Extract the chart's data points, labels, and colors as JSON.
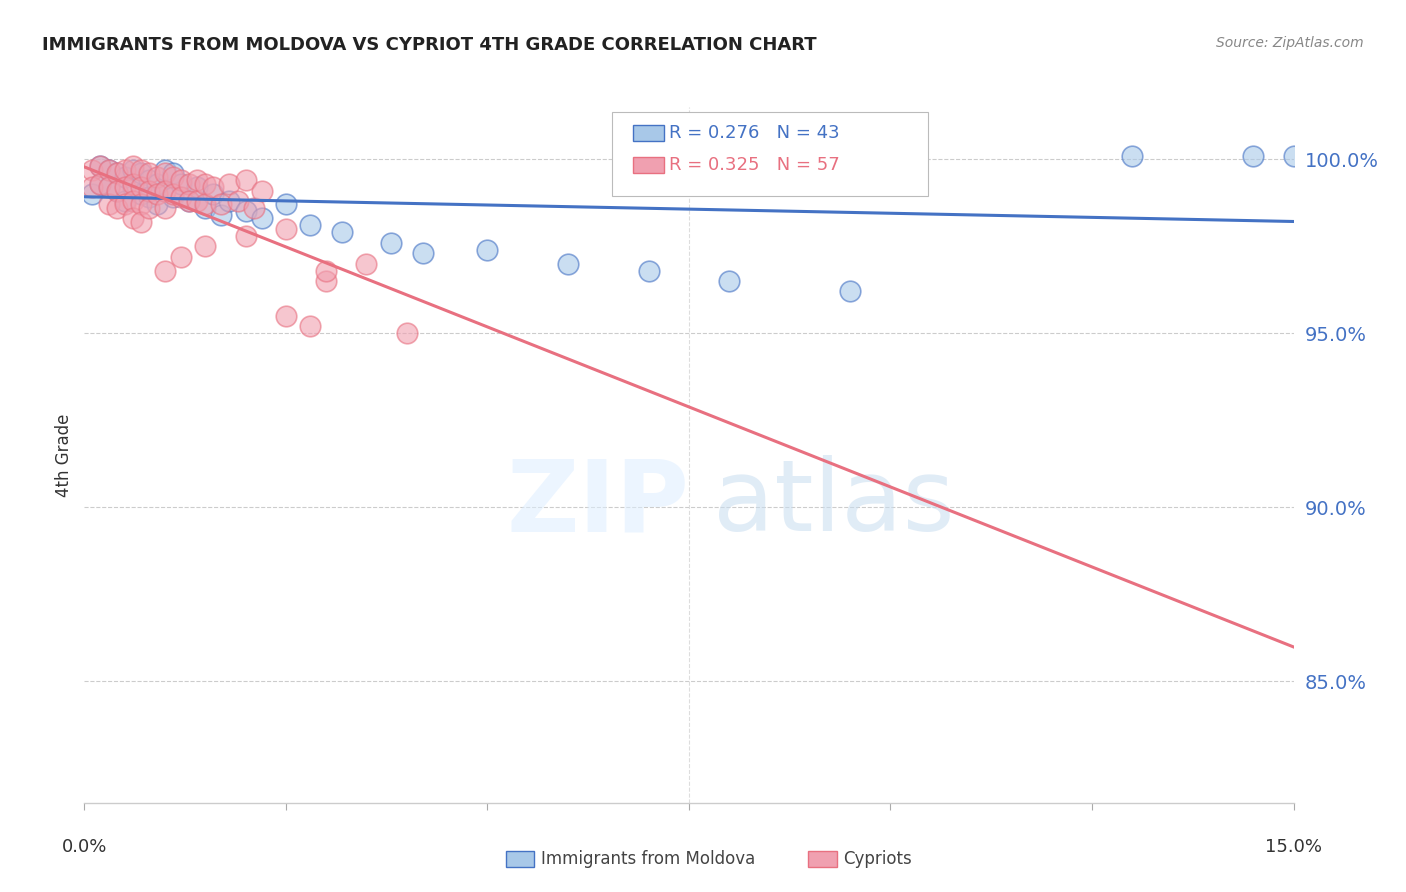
{
  "title": "IMMIGRANTS FROM MOLDOVA VS CYPRIOT 4TH GRADE CORRELATION CHART",
  "source": "Source: ZipAtlas.com",
  "ylabel": "4th Grade",
  "ytick_labels": [
    "100.0%",
    "95.0%",
    "90.0%",
    "85.0%"
  ],
  "ytick_values": [
    1.0,
    0.95,
    0.9,
    0.85
  ],
  "xlim": [
    0.0,
    0.15
  ],
  "ylim": [
    0.815,
    1.015
  ],
  "legend1_R": "0.276",
  "legend1_N": "43",
  "legend2_R": "0.325",
  "legend2_N": "57",
  "color_blue": "#a8c8e8",
  "color_pink": "#f0a0b0",
  "color_blue_line": "#4472C4",
  "color_pink_line": "#e87080",
  "moldova_x": [
    0.001,
    0.002,
    0.002,
    0.003,
    0.003,
    0.004,
    0.004,
    0.005,
    0.005,
    0.006,
    0.006,
    0.007,
    0.007,
    0.008,
    0.008,
    0.009,
    0.009,
    0.01,
    0.01,
    0.011,
    0.011,
    0.012,
    0.013,
    0.014,
    0.015,
    0.016,
    0.017,
    0.018,
    0.02,
    0.022,
    0.025,
    0.028,
    0.032,
    0.038,
    0.042,
    0.05,
    0.06,
    0.07,
    0.08,
    0.095,
    0.13,
    0.145,
    0.15
  ],
  "moldova_y": [
    0.99,
    0.998,
    0.993,
    0.997,
    0.992,
    0.996,
    0.991,
    0.995,
    0.988,
    0.997,
    0.992,
    0.996,
    0.99,
    0.994,
    0.989,
    0.993,
    0.987,
    0.997,
    0.991,
    0.996,
    0.989,
    0.993,
    0.988,
    0.992,
    0.986,
    0.99,
    0.984,
    0.988,
    0.985,
    0.983,
    0.987,
    0.981,
    0.979,
    0.976,
    0.973,
    0.974,
    0.97,
    0.968,
    0.965,
    0.962,
    1.001,
    1.001,
    1.001
  ],
  "cypriot_x": [
    0.001,
    0.001,
    0.002,
    0.002,
    0.003,
    0.003,
    0.003,
    0.004,
    0.004,
    0.004,
    0.005,
    0.005,
    0.005,
    0.006,
    0.006,
    0.006,
    0.006,
    0.007,
    0.007,
    0.007,
    0.007,
    0.008,
    0.008,
    0.008,
    0.009,
    0.009,
    0.01,
    0.01,
    0.01,
    0.011,
    0.011,
    0.012,
    0.012,
    0.013,
    0.013,
    0.014,
    0.014,
    0.015,
    0.015,
    0.016,
    0.017,
    0.018,
    0.019,
    0.02,
    0.021,
    0.022,
    0.025,
    0.028,
    0.03,
    0.035,
    0.01,
    0.012,
    0.015,
    0.02,
    0.025,
    0.03,
    0.04
  ],
  "cypriot_y": [
    0.997,
    0.992,
    0.998,
    0.993,
    0.997,
    0.992,
    0.987,
    0.996,
    0.991,
    0.986,
    0.997,
    0.992,
    0.987,
    0.998,
    0.993,
    0.988,
    0.983,
    0.997,
    0.992,
    0.987,
    0.982,
    0.996,
    0.991,
    0.986,
    0.995,
    0.99,
    0.996,
    0.991,
    0.986,
    0.995,
    0.99,
    0.994,
    0.989,
    0.993,
    0.988,
    0.994,
    0.988,
    0.993,
    0.987,
    0.992,
    0.987,
    0.993,
    0.988,
    0.994,
    0.986,
    0.991,
    0.955,
    0.952,
    0.965,
    0.97,
    0.968,
    0.972,
    0.975,
    0.978,
    0.98,
    0.968,
    0.95
  ]
}
